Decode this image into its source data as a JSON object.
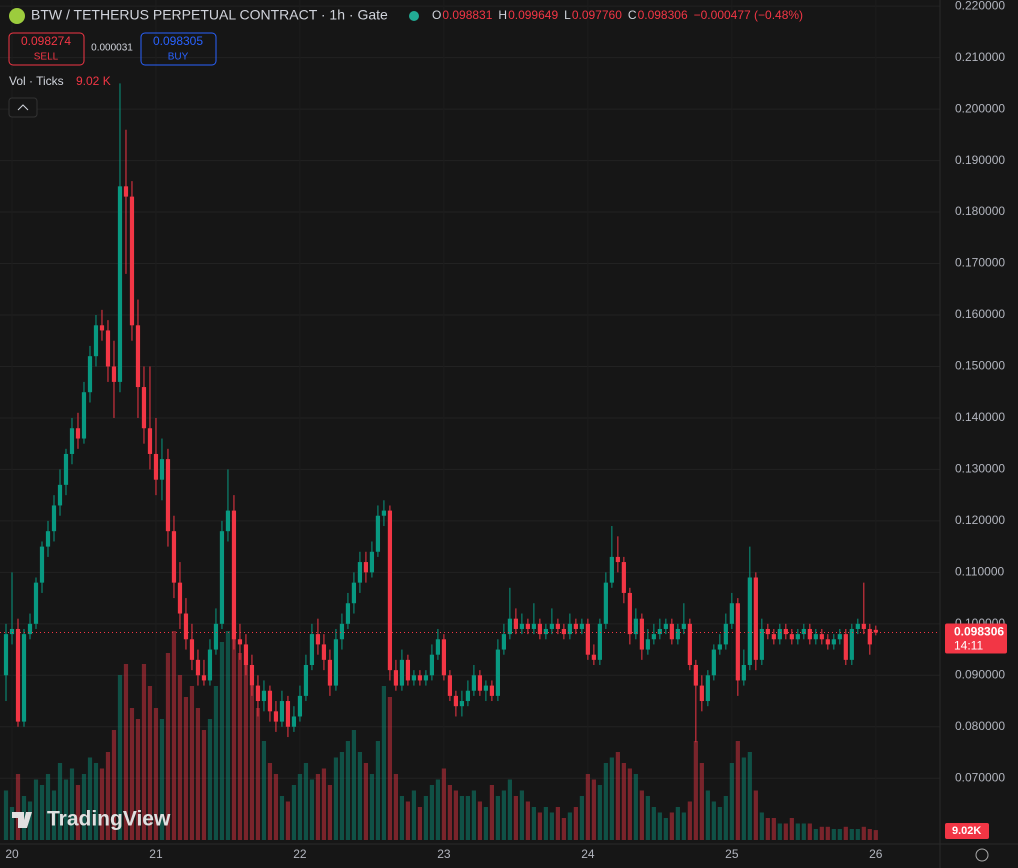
{
  "chart_data": {
    "type": "candlestick",
    "title": "BTW / TETHERUS PERPETUAL CONTRACT · 1h · Gate",
    "legend": [
      {
        "key": "O",
        "value": "0.098831"
      },
      {
        "key": "H",
        "value": "0.099649"
      },
      {
        "key": "L",
        "value": "0.097760"
      },
      {
        "key": "C",
        "value": "0.098306"
      }
    ],
    "change": "−0.000477 (−0.48%)",
    "sell": {
      "price": "0.098274",
      "label": "SELL"
    },
    "spread": "0.000031",
    "buy": {
      "price": "0.098305",
      "label": "BUY"
    },
    "volume_title": "Vol · Ticks",
    "volume_value": "9.02 K",
    "volume_tag": "9.02K",
    "brand": "TradingView",
    "up_color": "#089981",
    "down_color": "#f23645",
    "grid": true,
    "ylim": [
      0.058,
      0.2212
    ],
    "yticks": [
      {
        "value": 0.22,
        "label": "0.220000"
      },
      {
        "value": 0.21,
        "label": "0.210000"
      },
      {
        "value": 0.2,
        "label": "0.200000"
      },
      {
        "value": 0.19,
        "label": "0.190000"
      },
      {
        "value": 0.18,
        "label": "0.180000"
      },
      {
        "value": 0.17,
        "label": "0.170000"
      },
      {
        "value": 0.16,
        "label": "0.160000"
      },
      {
        "value": 0.15,
        "label": "0.150000"
      },
      {
        "value": 0.14,
        "label": "0.140000"
      },
      {
        "value": 0.13,
        "label": "0.130000"
      },
      {
        "value": 0.12,
        "label": "0.120000"
      },
      {
        "value": 0.11,
        "label": "0.110000"
      },
      {
        "value": 0.1,
        "label": "0.100000"
      },
      {
        "value": 0.09,
        "label": "0.090000"
      },
      {
        "value": 0.08,
        "label": "0.080000"
      },
      {
        "value": 0.07,
        "label": "0.070000"
      }
    ],
    "xlim": [
      -1,
      155.7
    ],
    "xticks": [
      {
        "value": 1,
        "label": "20"
      },
      {
        "value": 25,
        "label": "21"
      },
      {
        "value": 49,
        "label": "22"
      },
      {
        "value": 73,
        "label": "23"
      },
      {
        "value": 97,
        "label": "24"
      },
      {
        "value": 121,
        "label": "25"
      },
      {
        "value": 145,
        "label": "26"
      }
    ],
    "last_price": {
      "value": 0.098306,
      "label": "0.098306"
    },
    "countdown": "14:11",
    "ohlc": [
      [
        0.09,
        0.1,
        0.085,
        0.098
      ],
      [
        0.098,
        0.11,
        0.096,
        0.099
      ],
      [
        0.099,
        0.101,
        0.08,
        0.081
      ],
      [
        0.081,
        0.099,
        0.08,
        0.098
      ],
      [
        0.098,
        0.102,
        0.097,
        0.1
      ],
      [
        0.1,
        0.109,
        0.099,
        0.108
      ],
      [
        0.108,
        0.116,
        0.106,
        0.115
      ],
      [
        0.115,
        0.12,
        0.113,
        0.118
      ],
      [
        0.118,
        0.125,
        0.116,
        0.123
      ],
      [
        0.123,
        0.13,
        0.121,
        0.127
      ],
      [
        0.127,
        0.134,
        0.125,
        0.133
      ],
      [
        0.133,
        0.14,
        0.131,
        0.138
      ],
      [
        0.138,
        0.141,
        0.134,
        0.136
      ],
      [
        0.136,
        0.147,
        0.135,
        0.145
      ],
      [
        0.145,
        0.154,
        0.143,
        0.152
      ],
      [
        0.152,
        0.16,
        0.15,
        0.158
      ],
      [
        0.158,
        0.161,
        0.155,
        0.157
      ],
      [
        0.157,
        0.159,
        0.147,
        0.15
      ],
      [
        0.15,
        0.155,
        0.14,
        0.147
      ],
      [
        0.147,
        0.205,
        0.145,
        0.185
      ],
      [
        0.185,
        0.196,
        0.168,
        0.183
      ],
      [
        0.183,
        0.186,
        0.155,
        0.158
      ],
      [
        0.158,
        0.163,
        0.14,
        0.146
      ],
      [
        0.146,
        0.15,
        0.135,
        0.138
      ],
      [
        0.138,
        0.15,
        0.13,
        0.133
      ],
      [
        0.133,
        0.14,
        0.125,
        0.128
      ],
      [
        0.128,
        0.136,
        0.124,
        0.132
      ],
      [
        0.132,
        0.134,
        0.115,
        0.118
      ],
      [
        0.118,
        0.121,
        0.105,
        0.108
      ],
      [
        0.108,
        0.112,
        0.099,
        0.102
      ],
      [
        0.102,
        0.105,
        0.095,
        0.097
      ],
      [
        0.097,
        0.1,
        0.091,
        0.093
      ],
      [
        0.093,
        0.095,
        0.088,
        0.09
      ],
      [
        0.09,
        0.093,
        0.088,
        0.089
      ],
      [
        0.089,
        0.097,
        0.088,
        0.095
      ],
      [
        0.095,
        0.103,
        0.094,
        0.1
      ],
      [
        0.1,
        0.12,
        0.099,
        0.118
      ],
      [
        0.118,
        0.13,
        0.116,
        0.122
      ],
      [
        0.122,
        0.125,
        0.095,
        0.097
      ],
      [
        0.097,
        0.1,
        0.093,
        0.096
      ],
      [
        0.096,
        0.098,
        0.09,
        0.092
      ],
      [
        0.092,
        0.094,
        0.086,
        0.088
      ],
      [
        0.088,
        0.09,
        0.082,
        0.085
      ],
      [
        0.085,
        0.089,
        0.083,
        0.087
      ],
      [
        0.087,
        0.088,
        0.081,
        0.083
      ],
      [
        0.083,
        0.085,
        0.079,
        0.081
      ],
      [
        0.081,
        0.087,
        0.08,
        0.085
      ],
      [
        0.085,
        0.086,
        0.078,
        0.08
      ],
      [
        0.08,
        0.084,
        0.079,
        0.082
      ],
      [
        0.082,
        0.088,
        0.081,
        0.086
      ],
      [
        0.086,
        0.094,
        0.085,
        0.092
      ],
      [
        0.092,
        0.1,
        0.091,
        0.098
      ],
      [
        0.098,
        0.101,
        0.094,
        0.096
      ],
      [
        0.096,
        0.098,
        0.091,
        0.093
      ],
      [
        0.093,
        0.095,
        0.086,
        0.088
      ],
      [
        0.088,
        0.099,
        0.087,
        0.097
      ],
      [
        0.097,
        0.102,
        0.095,
        0.1
      ],
      [
        0.1,
        0.106,
        0.099,
        0.104
      ],
      [
        0.104,
        0.11,
        0.102,
        0.108
      ],
      [
        0.108,
        0.114,
        0.106,
        0.112
      ],
      [
        0.112,
        0.114,
        0.108,
        0.11
      ],
      [
        0.11,
        0.116,
        0.109,
        0.114
      ],
      [
        0.114,
        0.123,
        0.113,
        0.121
      ],
      [
        0.121,
        0.124,
        0.119,
        0.122
      ],
      [
        0.122,
        0.123,
        0.089,
        0.091
      ],
      [
        0.091,
        0.093,
        0.087,
        0.088
      ],
      [
        0.088,
        0.095,
        0.087,
        0.093
      ],
      [
        0.093,
        0.094,
        0.088,
        0.089
      ],
      [
        0.089,
        0.091,
        0.088,
        0.09
      ],
      [
        0.09,
        0.091,
        0.088,
        0.089
      ],
      [
        0.089,
        0.091,
        0.088,
        0.09
      ],
      [
        0.09,
        0.096,
        0.089,
        0.094
      ],
      [
        0.094,
        0.099,
        0.093,
        0.097
      ],
      [
        0.097,
        0.098,
        0.089,
        0.09
      ],
      [
        0.09,
        0.091,
        0.085,
        0.086
      ],
      [
        0.086,
        0.087,
        0.082,
        0.084
      ],
      [
        0.084,
        0.087,
        0.082,
        0.085
      ],
      [
        0.085,
        0.089,
        0.084,
        0.087
      ],
      [
        0.087,
        0.092,
        0.086,
        0.09
      ],
      [
        0.09,
        0.091,
        0.086,
        0.087
      ],
      [
        0.087,
        0.089,
        0.085,
        0.088
      ],
      [
        0.088,
        0.089,
        0.085,
        0.086
      ],
      [
        0.086,
        0.097,
        0.085,
        0.095
      ],
      [
        0.095,
        0.1,
        0.094,
        0.098
      ],
      [
        0.098,
        0.107,
        0.097,
        0.101
      ],
      [
        0.101,
        0.103,
        0.098,
        0.099
      ],
      [
        0.099,
        0.102,
        0.098,
        0.1
      ],
      [
        0.1,
        0.101,
        0.098,
        0.099
      ],
      [
        0.099,
        0.104,
        0.098,
        0.1
      ],
      [
        0.1,
        0.101,
        0.097,
        0.098
      ],
      [
        0.098,
        0.1,
        0.097,
        0.099
      ],
      [
        0.099,
        0.103,
        0.098,
        0.1
      ],
      [
        0.1,
        0.101,
        0.098,
        0.099
      ],
      [
        0.099,
        0.1,
        0.097,
        0.098
      ],
      [
        0.098,
        0.102,
        0.097,
        0.1
      ],
      [
        0.1,
        0.101,
        0.098,
        0.099
      ],
      [
        0.099,
        0.101,
        0.098,
        0.1
      ],
      [
        0.1,
        0.101,
        0.093,
        0.094
      ],
      [
        0.094,
        0.096,
        0.092,
        0.093
      ],
      [
        0.093,
        0.101,
        0.092,
        0.1
      ],
      [
        0.1,
        0.11,
        0.099,
        0.108
      ],
      [
        0.108,
        0.119,
        0.107,
        0.113
      ],
      [
        0.113,
        0.117,
        0.11,
        0.112
      ],
      [
        0.112,
        0.113,
        0.104,
        0.106
      ],
      [
        0.106,
        0.107,
        0.096,
        0.098
      ],
      [
        0.098,
        0.103,
        0.097,
        0.101
      ],
      [
        0.101,
        0.102,
        0.093,
        0.095
      ],
      [
        0.095,
        0.099,
        0.094,
        0.097
      ],
      [
        0.097,
        0.1,
        0.096,
        0.098
      ],
      [
        0.098,
        0.101,
        0.097,
        0.099
      ],
      [
        0.099,
        0.101,
        0.098,
        0.1
      ],
      [
        0.1,
        0.101,
        0.096,
        0.097
      ],
      [
        0.097,
        0.1,
        0.096,
        0.099
      ],
      [
        0.099,
        0.104,
        0.098,
        0.1
      ],
      [
        0.1,
        0.101,
        0.091,
        0.092
      ],
      [
        0.092,
        0.093,
        0.077,
        0.088
      ],
      [
        0.088,
        0.09,
        0.083,
        0.085
      ],
      [
        0.085,
        0.091,
        0.084,
        0.09
      ],
      [
        0.09,
        0.096,
        0.089,
        0.095
      ],
      [
        0.095,
        0.098,
        0.094,
        0.096
      ],
      [
        0.096,
        0.102,
        0.095,
        0.1
      ],
      [
        0.1,
        0.106,
        0.099,
        0.104
      ],
      [
        0.104,
        0.105,
        0.086,
        0.089
      ],
      [
        0.089,
        0.095,
        0.088,
        0.092
      ],
      [
        0.092,
        0.115,
        0.091,
        0.109
      ],
      [
        0.109,
        0.11,
        0.091,
        0.093
      ],
      [
        0.093,
        0.101,
        0.092,
        0.099
      ],
      [
        0.099,
        0.1,
        0.097,
        0.098
      ],
      [
        0.098,
        0.099,
        0.096,
        0.097
      ],
      [
        0.097,
        0.1,
        0.096,
        0.099
      ],
      [
        0.099,
        0.1,
        0.097,
        0.098
      ],
      [
        0.098,
        0.099,
        0.096,
        0.097
      ],
      [
        0.097,
        0.099,
        0.096,
        0.098
      ],
      [
        0.098,
        0.1,
        0.097,
        0.099
      ],
      [
        0.099,
        0.1,
        0.096,
        0.097
      ],
      [
        0.097,
        0.099,
        0.096,
        0.098
      ],
      [
        0.098,
        0.099,
        0.096,
        0.097
      ],
      [
        0.097,
        0.098,
        0.095,
        0.096
      ],
      [
        0.096,
        0.098,
        0.095,
        0.097
      ],
      [
        0.097,
        0.099,
        0.096,
        0.098
      ],
      [
        0.098,
        0.099,
        0.092,
        0.093
      ],
      [
        0.093,
        0.1,
        0.092,
        0.099
      ],
      [
        0.099,
        0.101,
        0.098,
        0.1
      ],
      [
        0.1,
        0.108,
        0.098,
        0.099
      ],
      [
        0.099,
        0.1,
        0.094,
        0.096
      ],
      [
        0.098831,
        0.099649,
        0.09776,
        0.098306
      ]
    ],
    "volume": [
      45,
      30,
      60,
      40,
      35,
      55,
      50,
      60,
      45,
      70,
      55,
      65,
      50,
      60,
      75,
      70,
      65,
      80,
      100,
      150,
      160,
      120,
      110,
      160,
      140,
      120,
      110,
      170,
      190,
      150,
      130,
      140,
      120,
      100,
      110,
      140,
      180,
      190,
      200,
      170,
      160,
      140,
      120,
      90,
      70,
      60,
      40,
      35,
      50,
      60,
      70,
      55,
      60,
      65,
      50,
      75,
      80,
      90,
      100,
      80,
      70,
      60,
      90,
      140,
      130,
      60,
      40,
      35,
      45,
      30,
      40,
      50,
      55,
      65,
      50,
      45,
      40,
      40,
      45,
      35,
      30,
      50,
      40,
      45,
      55,
      40,
      45,
      35,
      30,
      25,
      30,
      25,
      30,
      20,
      25,
      30,
      40,
      60,
      55,
      50,
      70,
      75,
      80,
      70,
      65,
      60,
      45,
      40,
      30,
      25,
      20,
      25,
      30,
      25,
      35,
      90,
      70,
      45,
      35,
      30,
      40,
      70,
      90,
      75,
      80,
      45,
      25,
      20,
      20,
      15,
      15,
      20,
      15,
      15,
      15,
      10,
      12,
      12,
      10,
      10,
      12,
      10,
      10,
      12,
      10,
      9.02
    ]
  }
}
